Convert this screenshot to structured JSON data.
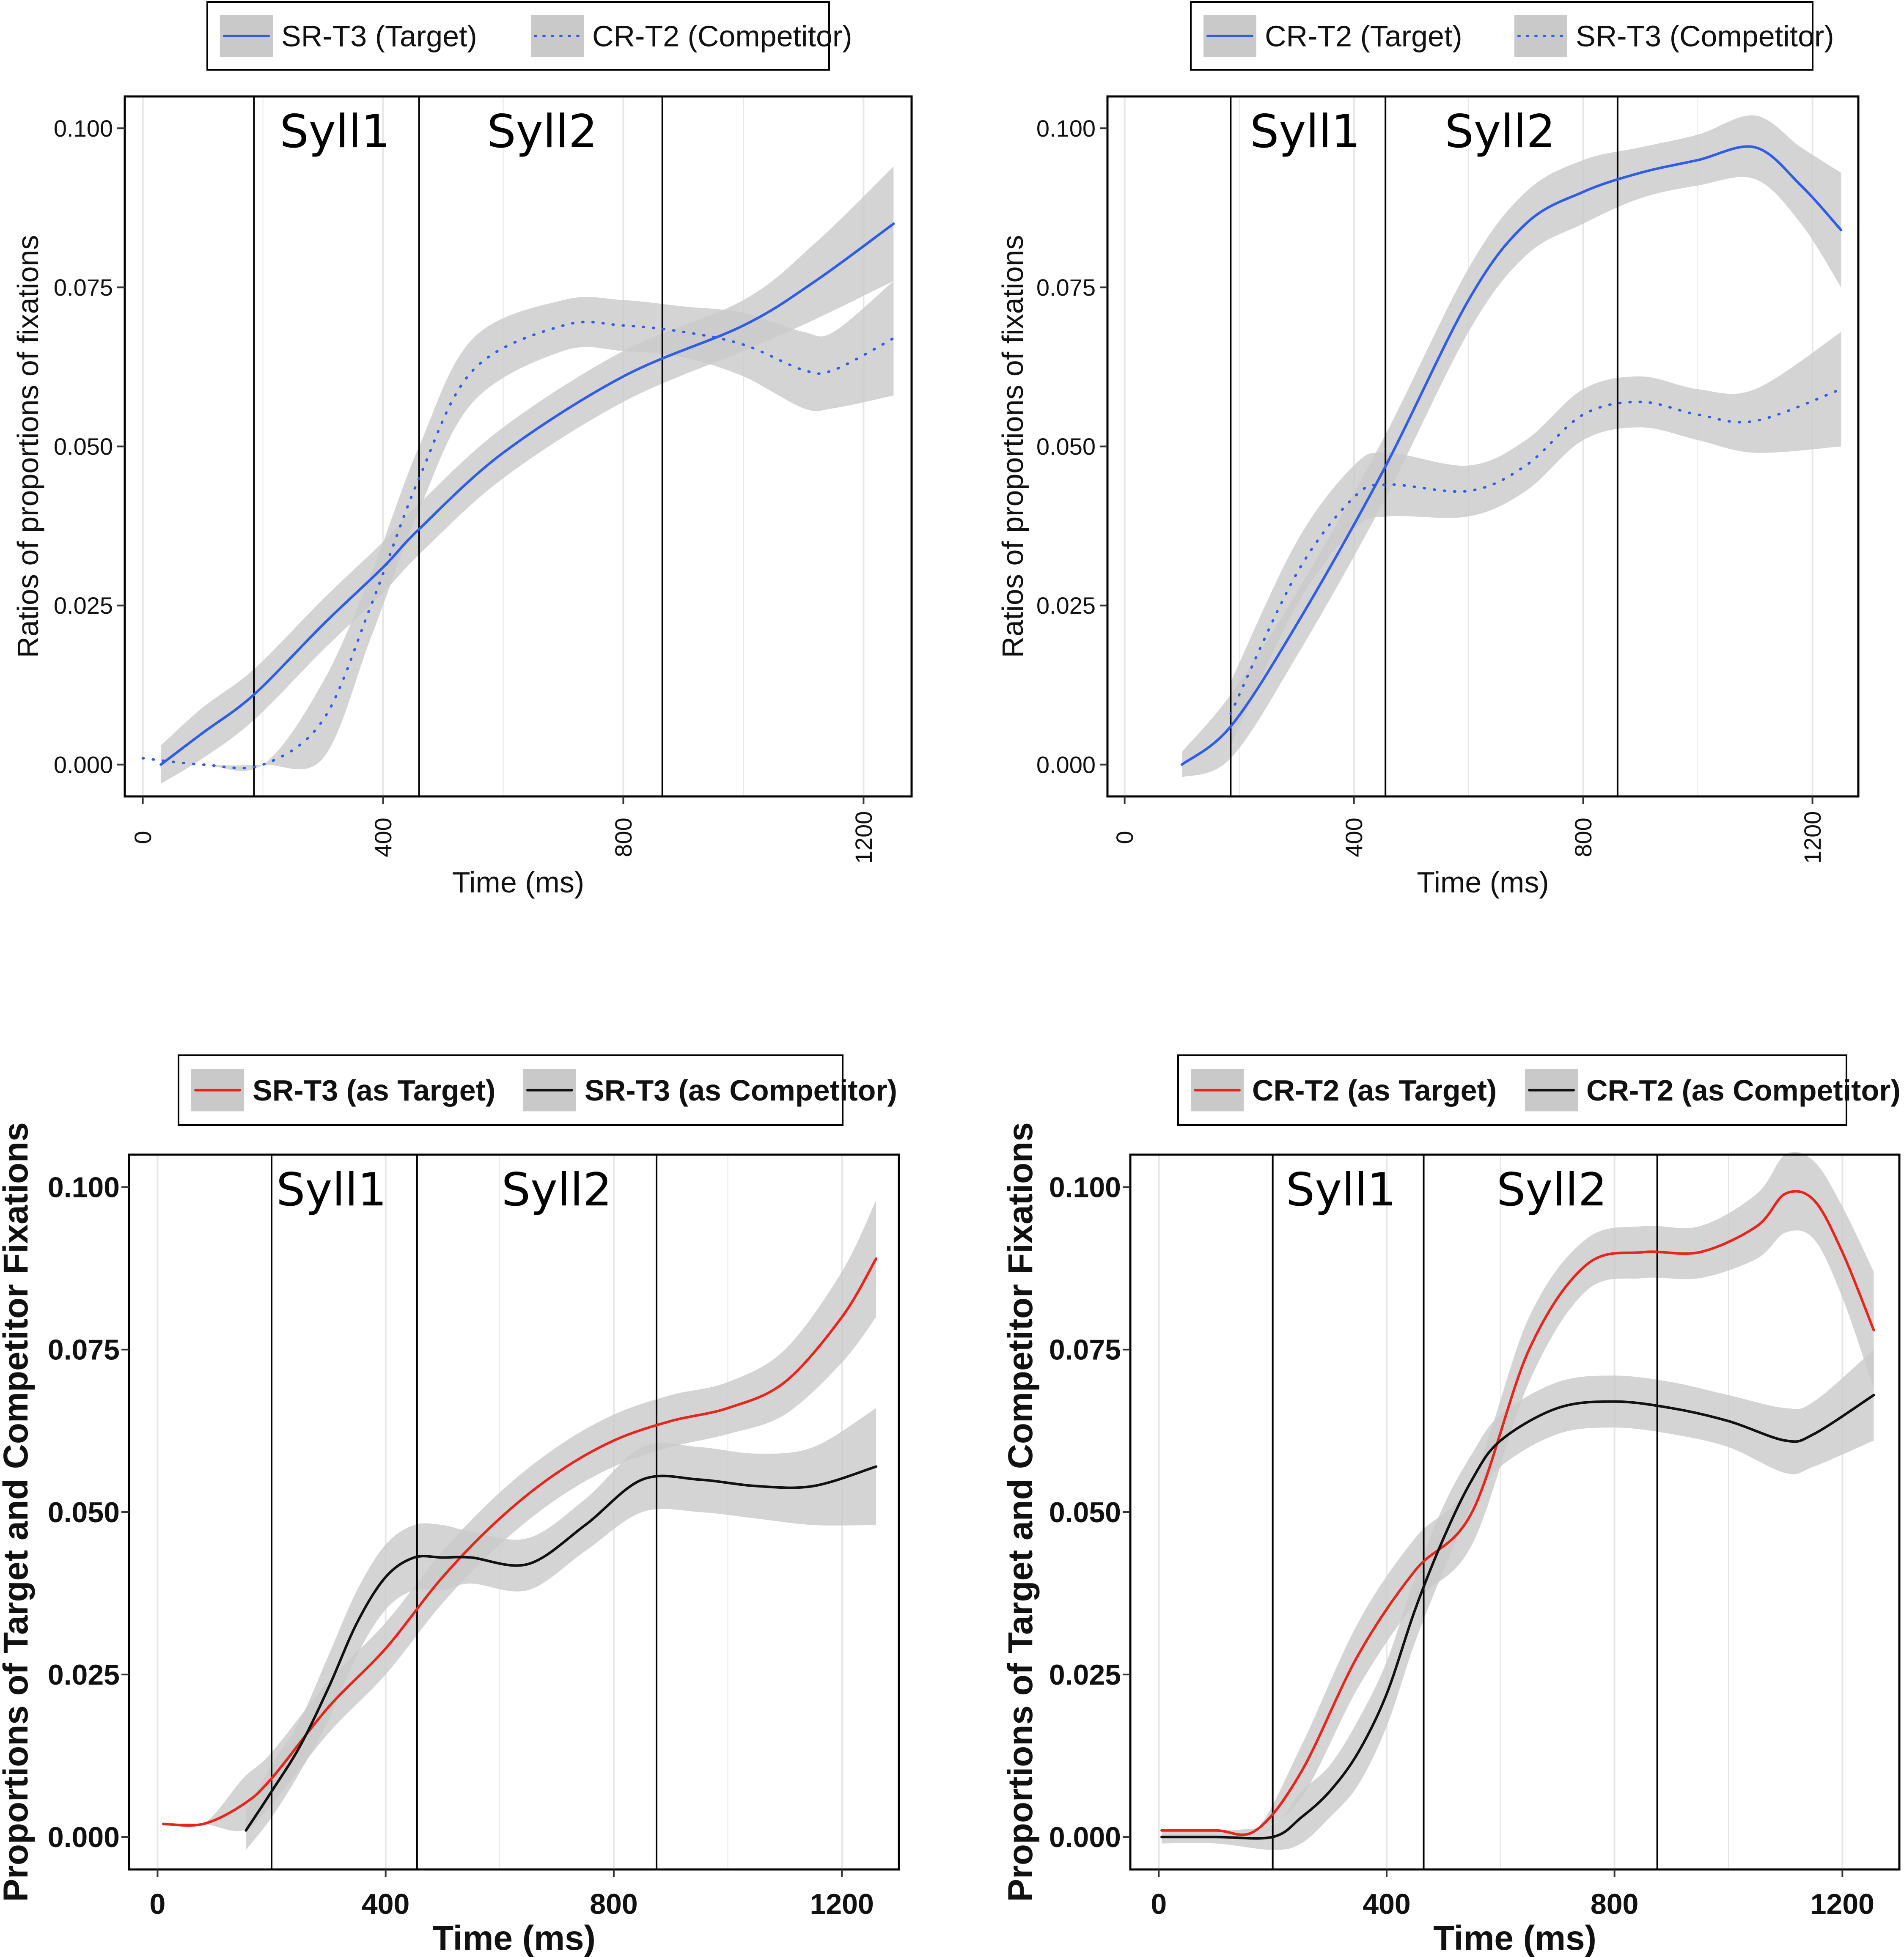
{
  "colors": {
    "blue": "#2f5ce8",
    "red": "#e8241c",
    "black": "#111111",
    "ribbon": "#c9c9c9",
    "grid": "#e6e6e6"
  },
  "chart_data": [
    {
      "type": "line",
      "style": "thin",
      "xlabel": "Time (ms)",
      "ylabel": "Ratios of proportions of fixations",
      "xlim": [
        -30,
        1280
      ],
      "ylim": [
        -0.005,
        0.105
      ],
      "xticks": [
        0,
        400,
        800,
        1200
      ],
      "xtick_labels": [
        "0",
        "400",
        "800",
        "1200"
      ],
      "yticks": [
        0,
        0.025,
        0.05,
        0.075,
        0.1
      ],
      "ytick_labels": [
        "0.000",
        "0.025",
        "0.050",
        "0.075",
        "0.100"
      ],
      "xtick_rotation": -90,
      "phase_lines": [
        185,
        460,
        865
      ],
      "phase_labels": [
        {
          "text": "Syll1",
          "x": 320
        },
        {
          "text": "Syll2",
          "x": 665
        }
      ],
      "legend": {
        "position": "top",
        "entries": [
          "SR-T3 (Target)",
          "CR-T2 (Competitor)"
        ]
      },
      "series": [
        {
          "name": "SR-T3 (Target)",
          "color": "blue",
          "dash": "solid",
          "x": [
            30,
            100,
            185,
            300,
            400,
            460,
            600,
            800,
            1000,
            1120,
            1250
          ],
          "y": [
            0.0,
            0.005,
            0.011,
            0.022,
            0.031,
            0.037,
            0.049,
            0.061,
            0.069,
            0.076,
            0.085
          ],
          "band": [
            0.003,
            0.004,
            0.004,
            0.004,
            0.004,
            0.004,
            0.004,
            0.004,
            0.004,
            0.006,
            0.009
          ]
        },
        {
          "name": "CR-T2 (Competitor)",
          "color": "blue",
          "dash": "dotted",
          "x": [
            0,
            100,
            200,
            300,
            380,
            460,
            550,
            700,
            800,
            900,
            1000,
            1100,
            1150,
            1250
          ],
          "y": [
            0.001,
            0.0,
            0.0,
            0.007,
            0.025,
            0.045,
            0.062,
            0.069,
            0.069,
            0.068,
            0.066,
            0.062,
            0.062,
            0.067
          ],
          "band": [
            0,
            0,
            0,
            0.006,
            0.005,
            0.005,
            0.005,
            0.004,
            0.004,
            0.004,
            0.005,
            0.006,
            0.006,
            0.009
          ]
        }
      ]
    },
    {
      "type": "line",
      "style": "thin",
      "xlabel": "Time (ms)",
      "ylabel": "Ratios of proportions of fixations",
      "xlim": [
        -30,
        1280
      ],
      "ylim": [
        -0.005,
        0.105
      ],
      "xticks": [
        0,
        400,
        800,
        1200
      ],
      "xtick_labels": [
        "0",
        "400",
        "800",
        "1200"
      ],
      "yticks": [
        0,
        0.025,
        0.05,
        0.075,
        0.1
      ],
      "ytick_labels": [
        "0.000",
        "0.025",
        "0.050",
        "0.075",
        "0.100"
      ],
      "xtick_rotation": -90,
      "phase_lines": [
        185,
        455,
        860
      ],
      "phase_labels": [
        {
          "text": "Syll1",
          "x": 315
        },
        {
          "text": "Syll2",
          "x": 655
        }
      ],
      "legend": {
        "position": "top",
        "entries": [
          "CR-T2 (Target)",
          "SR-T3 (Competitor)"
        ]
      },
      "series": [
        {
          "name": "CR-T2 (Target)",
          "color": "blue",
          "dash": "solid",
          "x": [
            100,
            185,
            300,
            450,
            600,
            700,
            800,
            900,
            1000,
            1100,
            1180,
            1250
          ],
          "y": [
            0.0,
            0.006,
            0.022,
            0.046,
            0.073,
            0.085,
            0.09,
            0.093,
            0.095,
            0.097,
            0.091,
            0.084
          ],
          "band": [
            0.002,
            0.005,
            0.005,
            0.005,
            0.005,
            0.005,
            0.005,
            0.004,
            0.004,
            0.005,
            0.006,
            0.009
          ]
        },
        {
          "name": "SR-T3 (Competitor)",
          "color": "blue",
          "dash": "dotted",
          "x": [
            185,
            300,
            400,
            460,
            600,
            700,
            800,
            900,
            1000,
            1100,
            1250
          ],
          "y": [
            0.008,
            0.03,
            0.042,
            0.044,
            0.043,
            0.047,
            0.055,
            0.057,
            0.055,
            0.054,
            0.059
          ],
          "band": [
            0.005,
            0.005,
            0.005,
            0.005,
            0.004,
            0.004,
            0.004,
            0.004,
            0.004,
            0.005,
            0.009
          ]
        }
      ]
    },
    {
      "type": "line",
      "style": "bold",
      "xlabel": "Time (ms)",
      "ylabel": "Proportions of Target and Competitor Fixations",
      "xlim": [
        -50,
        1300
      ],
      "ylim": [
        -0.005,
        0.105
      ],
      "xticks": [
        0,
        400,
        800,
        1200
      ],
      "xtick_labels": [
        "0",
        "400",
        "800",
        "1200"
      ],
      "yticks": [
        0,
        0.025,
        0.05,
        0.075,
        0.1
      ],
      "ytick_labels": [
        "0.000",
        "0.025",
        "0.050",
        "0.075",
        "0.100"
      ],
      "xtick_rotation": 0,
      "phase_lines": [
        200,
        455,
        875
      ],
      "phase_labels": [
        {
          "text": "Syll1",
          "x": 305
        },
        {
          "text": "Syll2",
          "x": 700
        }
      ],
      "legend": {
        "position": "top",
        "entries": [
          "SR-T3 (as Target)",
          "SR-T3 (as Competitor)"
        ]
      },
      "series": [
        {
          "name": "SR-T3 (as Target)",
          "color": "red",
          "dash": "solid",
          "x": [
            10,
            80,
            150,
            200,
            300,
            400,
            500,
            600,
            700,
            800,
            900,
            1000,
            1100,
            1200,
            1260
          ],
          "y": [
            0.002,
            0.002,
            0.005,
            0.009,
            0.02,
            0.029,
            0.04,
            0.049,
            0.056,
            0.061,
            0.064,
            0.066,
            0.07,
            0.08,
            0.089
          ],
          "band": [
            0,
            0,
            0.004,
            0.004,
            0.004,
            0.004,
            0.004,
            0.004,
            0.004,
            0.004,
            0.004,
            0.004,
            0.005,
            0.007,
            0.009
          ]
        },
        {
          "name": "SR-T3 (as Competitor)",
          "color": "black",
          "dash": "solid",
          "x": [
            155,
            200,
            250,
            300,
            350,
            400,
            450,
            500,
            550,
            650,
            750,
            850,
            950,
            1050,
            1150,
            1260
          ],
          "y": [
            0.001,
            0.007,
            0.014,
            0.023,
            0.033,
            0.04,
            0.043,
            0.043,
            0.043,
            0.042,
            0.048,
            0.055,
            0.055,
            0.054,
            0.054,
            0.057
          ],
          "band": [
            0.003,
            0.004,
            0.004,
            0.005,
            0.005,
            0.005,
            0.005,
            0.005,
            0.004,
            0.004,
            0.004,
            0.005,
            0.005,
            0.005,
            0.006,
            0.009
          ]
        }
      ]
    },
    {
      "type": "line",
      "style": "bold",
      "xlabel": "Time (ms)",
      "ylabel": "Proportions of Target and Competitor Fixations",
      "xlim": [
        -50,
        1300
      ],
      "ylim": [
        -0.005,
        0.105
      ],
      "xticks": [
        0,
        400,
        800,
        1200
      ],
      "xtick_labels": [
        "0",
        "400",
        "800",
        "1200"
      ],
      "yticks": [
        0,
        0.025,
        0.05,
        0.075,
        0.1
      ],
      "ytick_labels": [
        "0.000",
        "0.025",
        "0.050",
        "0.075",
        "0.100"
      ],
      "xtick_rotation": 0,
      "phase_lines": [
        200,
        465,
        875
      ],
      "phase_labels": [
        {
          "text": "Syll1",
          "x": 320
        },
        {
          "text": "Syll2",
          "x": 690
        }
      ],
      "legend": {
        "position": "top",
        "entries": [
          "CR-T2 (as Target)",
          "CR-T2 (as Competitor)"
        ]
      },
      "series": [
        {
          "name": "CR-T2 (as Target)",
          "color": "red",
          "dash": "solid",
          "x": [
            5,
            100,
            170,
            250,
            350,
            450,
            550,
            650,
            750,
            850,
            950,
            1050,
            1100,
            1150,
            1200,
            1255
          ],
          "y": [
            0.001,
            0.001,
            0.001,
            0.01,
            0.028,
            0.041,
            0.05,
            0.075,
            0.088,
            0.09,
            0.09,
            0.094,
            0.099,
            0.098,
            0.09,
            0.078
          ],
          "band": [
            0,
            0,
            0,
            0.004,
            0.005,
            0.005,
            0.005,
            0.005,
            0.004,
            0.004,
            0.004,
            0.005,
            0.006,
            0.006,
            0.007,
            0.009
          ]
        },
        {
          "name": "CR-T2 (as Competitor)",
          "color": "black",
          "dash": "solid",
          "x": [
            5,
            100,
            200,
            250,
            300,
            350,
            400,
            450,
            500,
            550,
            600,
            700,
            800,
            900,
            1000,
            1100,
            1150,
            1255
          ],
          "y": [
            0.0,
            0.0,
            0.0,
            0.003,
            0.007,
            0.013,
            0.022,
            0.035,
            0.046,
            0.055,
            0.061,
            0.066,
            0.067,
            0.066,
            0.064,
            0.061,
            0.062,
            0.068
          ],
          "band": [
            0.001,
            0.001,
            0.002,
            0.004,
            0.004,
            0.005,
            0.005,
            0.005,
            0.005,
            0.004,
            0.004,
            0.004,
            0.004,
            0.004,
            0.004,
            0.005,
            0.005,
            0.007
          ]
        }
      ]
    }
  ]
}
